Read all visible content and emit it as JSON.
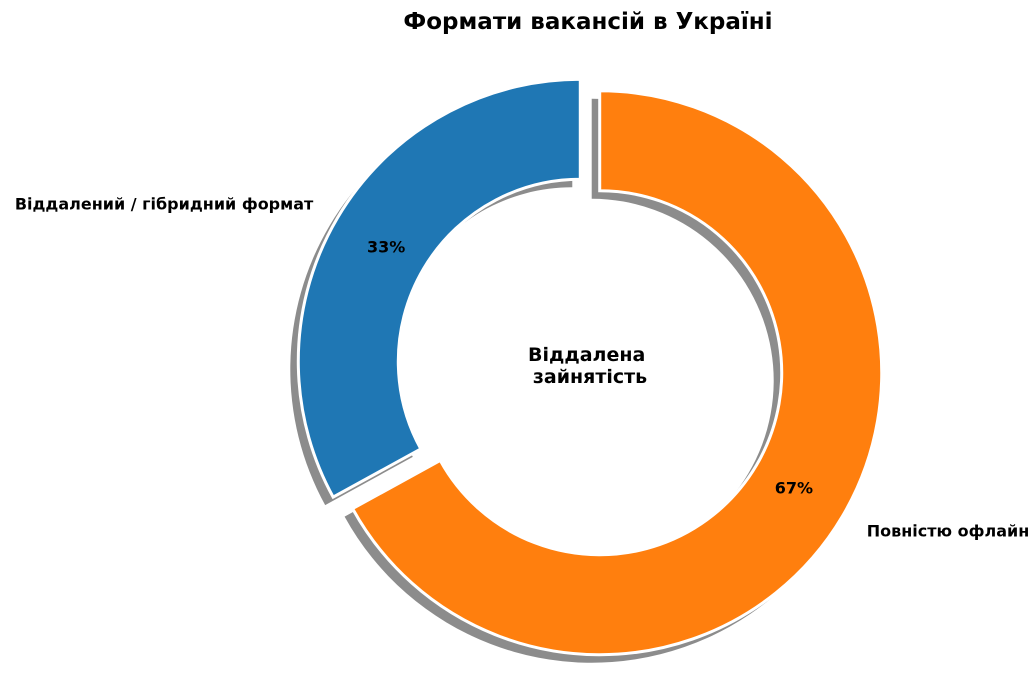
{
  "chart_data": {
    "type": "pie",
    "variant": "donut",
    "title": "Формати вакансій в Україні",
    "center_text": [
      "Віддалена",
      "зайнятість"
    ],
    "shadow": true,
    "exploded": true,
    "categories": [
      "Віддалений / гібридний формат",
      "Повністю офлайн"
    ],
    "values": [
      33,
      67
    ],
    "value_labels": [
      "33%",
      "67%"
    ],
    "colors": [
      "#1f77b4",
      "#ff7f0e"
    ]
  }
}
